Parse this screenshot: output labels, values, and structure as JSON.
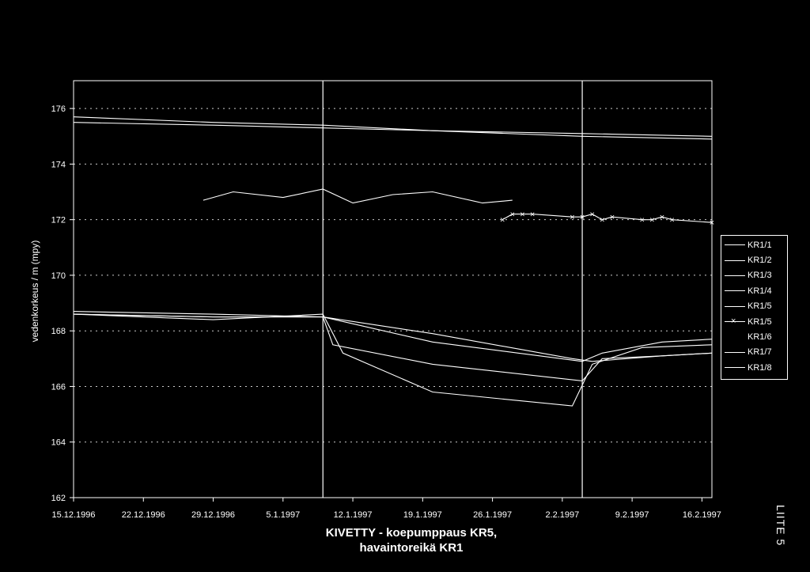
{
  "chart_data": {
    "type": "line",
    "title": "KIVETTY - koepumppaus KR5,",
    "subtitle": "havaintoreikä KR1",
    "ylabel": "vedenkorkeus / m (mpy)",
    "xlabel": "",
    "ylim": [
      162,
      177
    ],
    "yticks": [
      162,
      164,
      166,
      168,
      170,
      172,
      174,
      176
    ],
    "xlim": [
      "1996-12-15",
      "1997-02-17"
    ],
    "xticks": [
      "15.12.1996",
      "22.12.1996",
      "29.12.1996",
      "5.1.1997",
      "12.1.1997",
      "19.1.1997",
      "26.1.1997",
      "2.2.1997",
      "9.2.1997",
      "16.2.1997"
    ],
    "grid": "horizontal dotted",
    "legend_position": "right",
    "vertical_markers": [
      "1997-01-09",
      "1997-02-04"
    ],
    "series": [
      {
        "name": "KR1/1",
        "x": [
          "1996-12-15",
          "1996-12-29",
          "1997-01-09",
          "1997-01-20",
          "1997-02-04",
          "1997-02-17"
        ],
        "values": [
          175.7,
          175.5,
          175.4,
          175.2,
          175.0,
          174.9
        ]
      },
      {
        "name": "KR1/2",
        "x": [
          "1996-12-15",
          "1996-12-29",
          "1997-01-09",
          "1997-01-20",
          "1997-02-04",
          "1997-02-17"
        ],
        "values": [
          175.5,
          175.4,
          175.3,
          175.2,
          175.1,
          175.0
        ]
      },
      {
        "name": "KR1/3",
        "x": [
          "1996-12-28",
          "1996-12-31",
          "1997-01-05",
          "1997-01-09",
          "1997-01-12",
          "1997-01-16",
          "1997-01-20",
          "1997-01-25",
          "1997-01-28"
        ],
        "values": [
          172.7,
          173.0,
          172.8,
          173.1,
          172.6,
          172.9,
          173.0,
          172.6,
          172.7
        ]
      },
      {
        "name": "KR1/4",
        "x": [
          "1996-12-15",
          "1996-12-29",
          "1997-01-09",
          "1997-01-10",
          "1997-01-20",
          "1997-02-04",
          "1997-02-06",
          "1997-02-12",
          "1997-02-17"
        ],
        "values": [
          168.6,
          168.5,
          168.5,
          167.5,
          166.8,
          166.2,
          167.0,
          167.1,
          167.2
        ]
      },
      {
        "name": "KR1/5",
        "x": [
          "1996-12-15",
          "1996-12-29",
          "1997-01-09",
          "1997-01-20",
          "1997-02-03",
          "1997-02-05",
          "1997-02-12",
          "1997-02-17"
        ],
        "values": [
          168.7,
          168.6,
          168.5,
          167.9,
          167.0,
          166.9,
          167.1,
          167.2
        ]
      },
      {
        "name": "KR1/5",
        "marker": "x",
        "x": [
          "1997-01-27",
          "1997-01-28",
          "1997-01-29",
          "1997-01-30",
          "1997-02-03",
          "1997-02-04",
          "1997-02-05",
          "1997-02-06",
          "1997-02-07",
          "1997-02-10",
          "1997-02-11",
          "1997-02-12",
          "1997-02-13",
          "1997-02-17"
        ],
        "values": [
          172.0,
          172.2,
          172.2,
          172.2,
          172.1,
          172.1,
          172.2,
          172.0,
          172.1,
          172.0,
          172.0,
          172.1,
          172.0,
          171.9
        ]
      },
      {
        "name": "KR1/6",
        "x": [],
        "values": []
      },
      {
        "name": "KR1/7",
        "x": [
          "1996-12-15",
          "1996-12-29",
          "1997-01-09",
          "1997-01-11",
          "1997-01-20",
          "1997-02-03",
          "1997-02-05",
          "1997-02-10",
          "1997-02-17"
        ],
        "values": [
          168.6,
          168.4,
          168.6,
          167.2,
          165.8,
          165.3,
          166.8,
          167.4,
          167.5
        ]
      },
      {
        "name": "KR1/8",
        "x": [
          "1996-12-15",
          "1996-12-29",
          "1997-01-09",
          "1997-01-20",
          "1997-02-04",
          "1997-02-06",
          "1997-02-12",
          "1997-02-17"
        ],
        "values": [
          168.6,
          168.5,
          168.5,
          167.6,
          166.9,
          167.2,
          167.6,
          167.7
        ]
      }
    ]
  },
  "legend": [
    "KR1/1",
    "KR1/2",
    "KR1/3",
    "KR1/4",
    "KR1/5",
    "KR1/5",
    "KR1/6",
    "KR1/7",
    "KR1/8"
  ],
  "side_label": "LIITE 5"
}
